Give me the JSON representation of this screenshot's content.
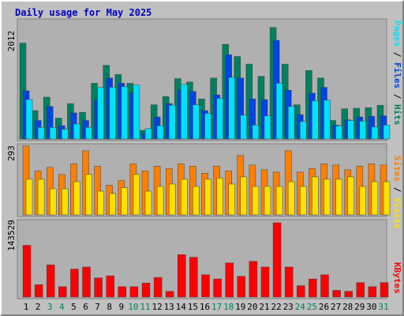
{
  "chart_data": [
    {
      "type": "bar",
      "title": "Daily usage for May 2025",
      "ymax_label": "2012",
      "ylim": [
        0,
        2012
      ],
      "legend": [
        {
          "text": "Pages",
          "color": "#00e0ff"
        },
        {
          "text": "Files",
          "color": "#0044e0"
        },
        {
          "text": "Hits",
          "color": "#008060"
        }
      ],
      "categories": [
        "1",
        "2",
        "3",
        "4",
        "5",
        "6",
        "7",
        "8",
        "9",
        "10",
        "11",
        "12",
        "13",
        "14",
        "15",
        "16",
        "17",
        "18",
        "19",
        "20",
        "21",
        "22",
        "23",
        "24",
        "25",
        "26",
        "27",
        "28",
        "29",
        "30",
        "31"
      ],
      "weekend_days": [
        "3",
        "4",
        "10",
        "11",
        "17",
        "18",
        "24",
        "25",
        "31"
      ],
      "series": [
        {
          "name": "Hits",
          "color": "#008060",
          "values": [
            1650,
            490,
            720,
            360,
            610,
            460,
            960,
            1270,
            1110,
            960,
            150,
            590,
            730,
            1040,
            980,
            690,
            1050,
            1630,
            1420,
            1290,
            1080,
            1920,
            1290,
            590,
            1180,
            1050,
            320,
            520,
            530,
            540,
            580
          ]
        },
        {
          "name": "Files",
          "color": "#0044e0",
          "values": [
            830,
            320,
            560,
            230,
            450,
            320,
            680,
            1050,
            960,
            800,
            100,
            380,
            610,
            850,
            820,
            490,
            760,
            1450,
            1050,
            690,
            680,
            1700,
            840,
            420,
            790,
            890,
            240,
            330,
            380,
            390,
            400
          ]
        },
        {
          "name": "Pages",
          "color": "#00e0ff",
          "values": [
            680,
            200,
            200,
            170,
            260,
            200,
            890,
            890,
            900,
            930,
            180,
            230,
            580,
            940,
            590,
            440,
            700,
            1060,
            410,
            240,
            400,
            960,
            560,
            300,
            660,
            670,
            230,
            320,
            310,
            210,
            240
          ]
        }
      ]
    },
    {
      "type": "bar",
      "ymax_label": "293",
      "ylim": [
        0,
        293
      ],
      "legend": [
        {
          "text": "Sites",
          "color": "#ff8000"
        },
        {
          "text": "Visits",
          "color": "#ffe000"
        }
      ],
      "categories": [
        "1",
        "2",
        "3",
        "4",
        "5",
        "6",
        "7",
        "8",
        "9",
        "10",
        "11",
        "12",
        "13",
        "14",
        "15",
        "16",
        "17",
        "18",
        "19",
        "20",
        "21",
        "22",
        "23",
        "24",
        "25",
        "26",
        "27",
        "28",
        "29",
        "30",
        "31"
      ],
      "series": [
        {
          "name": "Sites",
          "color": "#ff8000",
          "values": [
            290,
            185,
            200,
            170,
            215,
            270,
            205,
            125,
            145,
            215,
            185,
            205,
            195,
            215,
            205,
            175,
            205,
            185,
            250,
            210,
            190,
            180,
            270,
            180,
            195,
            215,
            210,
            190,
            205,
            215,
            210
          ]
        },
        {
          "name": "Visits",
          "color": "#ffe000",
          "values": [
            150,
            150,
            110,
            110,
            140,
            170,
            100,
            90,
            115,
            170,
            100,
            120,
            130,
            150,
            120,
            150,
            155,
            130,
            160,
            120,
            120,
            120,
            140,
            120,
            160,
            150,
            150,
            160,
            120,
            140,
            140
          ]
        }
      ]
    },
    {
      "type": "bar",
      "ymax_label": "143529",
      "ylim": [
        0,
        143529
      ],
      "legend": [
        {
          "text": "KBytes",
          "color": "#ff0000"
        }
      ],
      "categories": [
        "1",
        "2",
        "3",
        "4",
        "5",
        "6",
        "7",
        "8",
        "9",
        "10",
        "11",
        "12",
        "13",
        "14",
        "15",
        "16",
        "17",
        "18",
        "19",
        "20",
        "21",
        "22",
        "23",
        "24",
        "25",
        "26",
        "27",
        "28",
        "29",
        "30",
        "31"
      ],
      "series": [
        {
          "name": "KBytes",
          "color": "#ff0000",
          "values": [
            100000,
            24000,
            62000,
            20000,
            54000,
            58000,
            37000,
            41000,
            20000,
            20000,
            27000,
            38000,
            11000,
            82000,
            77000,
            43000,
            35000,
            66000,
            40000,
            69000,
            58000,
            143529,
            58000,
            22000,
            35000,
            43000,
            13000,
            11000,
            28000,
            20000,
            28000
          ]
        }
      ]
    }
  ]
}
